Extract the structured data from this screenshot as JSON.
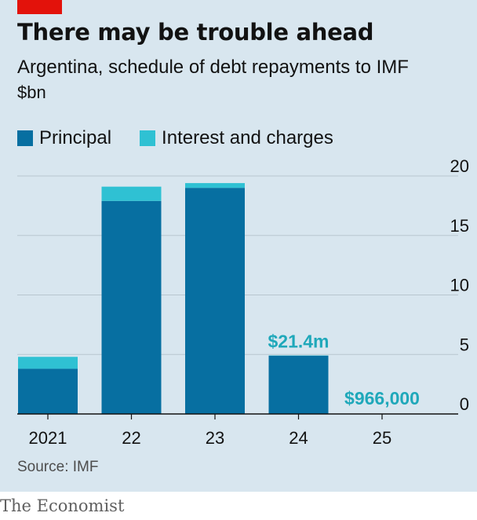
{
  "header": {
    "title": "There may be trouble ahead",
    "subtitle": "Argentina, schedule of debt repayments to IMF",
    "unit": "$bn"
  },
  "legend": [
    {
      "label": "Interest and charges",
      "color": "#2fc1d3"
    },
    {
      "label": "Principal",
      "color": "#076fa1"
    }
  ],
  "source": "Source: IMF",
  "brand": "The Economist",
  "chart_data": {
    "type": "bar",
    "stacked": true,
    "categories": [
      "2021",
      "22",
      "23",
      "24",
      "25"
    ],
    "series": [
      {
        "name": "Principal",
        "color": "#076fa1",
        "values": [
          3.8,
          17.9,
          19.0,
          4.9,
          0
        ]
      },
      {
        "name": "Interest and charges",
        "color": "#2fc1d3",
        "values": [
          1.0,
          1.2,
          0.4,
          0.0214,
          0.000966
        ]
      }
    ],
    "yticks": [
      0,
      5,
      10,
      15,
      20
    ],
    "ylim": [
      0,
      20
    ],
    "yaxis_side": "right",
    "grid": true,
    "legend_position": "top-left",
    "annotations": [
      {
        "text": "$21.4m",
        "category": "24",
        "color": "#1fa8ba"
      },
      {
        "text": "$966,000",
        "category": "25",
        "color": "#1fa8ba"
      }
    ]
  }
}
